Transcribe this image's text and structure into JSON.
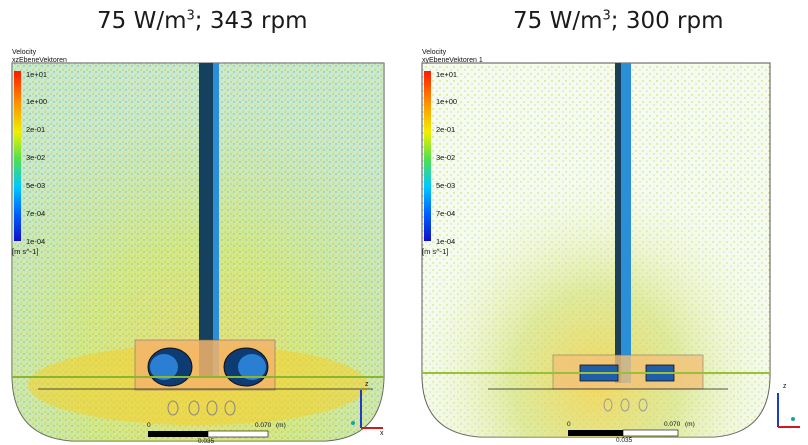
{
  "panels": [
    {
      "title_prefix": "75 W/m",
      "title_sup": "3",
      "title_suffix": "; 343 rpm",
      "legend_title": "Velocity",
      "legend_subtitle": "xzEbeneVektoren",
      "ticks": [
        "1e+01",
        "1e+00",
        "2e-01",
        "3e-02",
        "5e-03",
        "7e-04",
        "1e-04"
      ],
      "unit": "[m s^-1]",
      "scale_start": "0",
      "scale_mid": "0.035",
      "scale_end": "0.070",
      "scale_unit": "(m)",
      "axis_z": "z",
      "axis_x": "x"
    },
    {
      "title_prefix": "75 W/m",
      "title_sup": "3",
      "title_suffix": "; 300 rpm",
      "legend_title": "Velocity",
      "legend_subtitle": "xyEbeneVektoren 1",
      "ticks": [
        "1e+01",
        "1e+00",
        "2e-01",
        "3e-02",
        "5e-03",
        "7e-04",
        "1e-04"
      ],
      "unit": "[m s^-1]",
      "scale_start": "0",
      "scale_mid": "0.035",
      "scale_end": "0.070",
      "scale_unit": "(m)",
      "axis_z": "z",
      "axis_x": ""
    }
  ],
  "colors": {
    "speckle_green": "#c7e23a",
    "speckle_yellow": "#f5d22a",
    "speckle_blue": "#3ea7d8",
    "shaft_blue": "#1f6fd0",
    "impeller_orange": "#f2a64a"
  }
}
